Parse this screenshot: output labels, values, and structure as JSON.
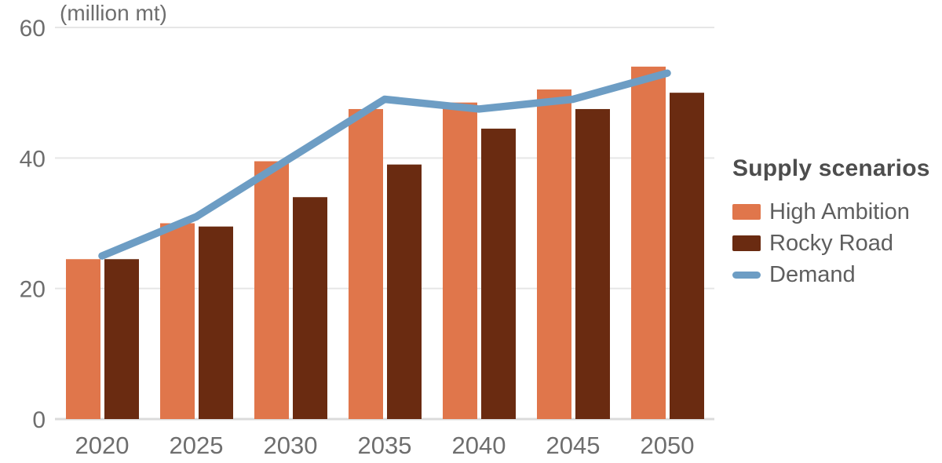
{
  "chart_data": {
    "type": "bar",
    "subtype": "grouped-bars-with-line-overlay",
    "title": "(million mt)",
    "ylabel": "(million mt)",
    "xlabel": "",
    "categories": [
      "2020",
      "2025",
      "2030",
      "2035",
      "2040",
      "2045",
      "2050"
    ],
    "series": [
      {
        "name": "High Ambition",
        "type": "bar",
        "color": "#E0764B",
        "values": [
          24.5,
          30,
          39.5,
          47.5,
          48.5,
          50.5,
          54
        ]
      },
      {
        "name": "Rocky Road",
        "type": "bar",
        "color": "#6A2B11",
        "values": [
          24.5,
          29.5,
          34,
          39,
          44.5,
          47.5,
          50
        ]
      },
      {
        "name": "Demand",
        "type": "line",
        "color": "#6D9DC4",
        "values": [
          25,
          31,
          40,
          49,
          47.5,
          49,
          53
        ]
      }
    ],
    "ylim": [
      0,
      60
    ],
    "yticks": [
      0,
      20,
      40,
      60
    ],
    "grid": true,
    "legend_title": "Supply scenarios",
    "legend_position": "right",
    "colors": {
      "gridline": "#E6E6E6",
      "baseline": "#DBDBDB",
      "axis_text": "#6E6E6E"
    }
  }
}
